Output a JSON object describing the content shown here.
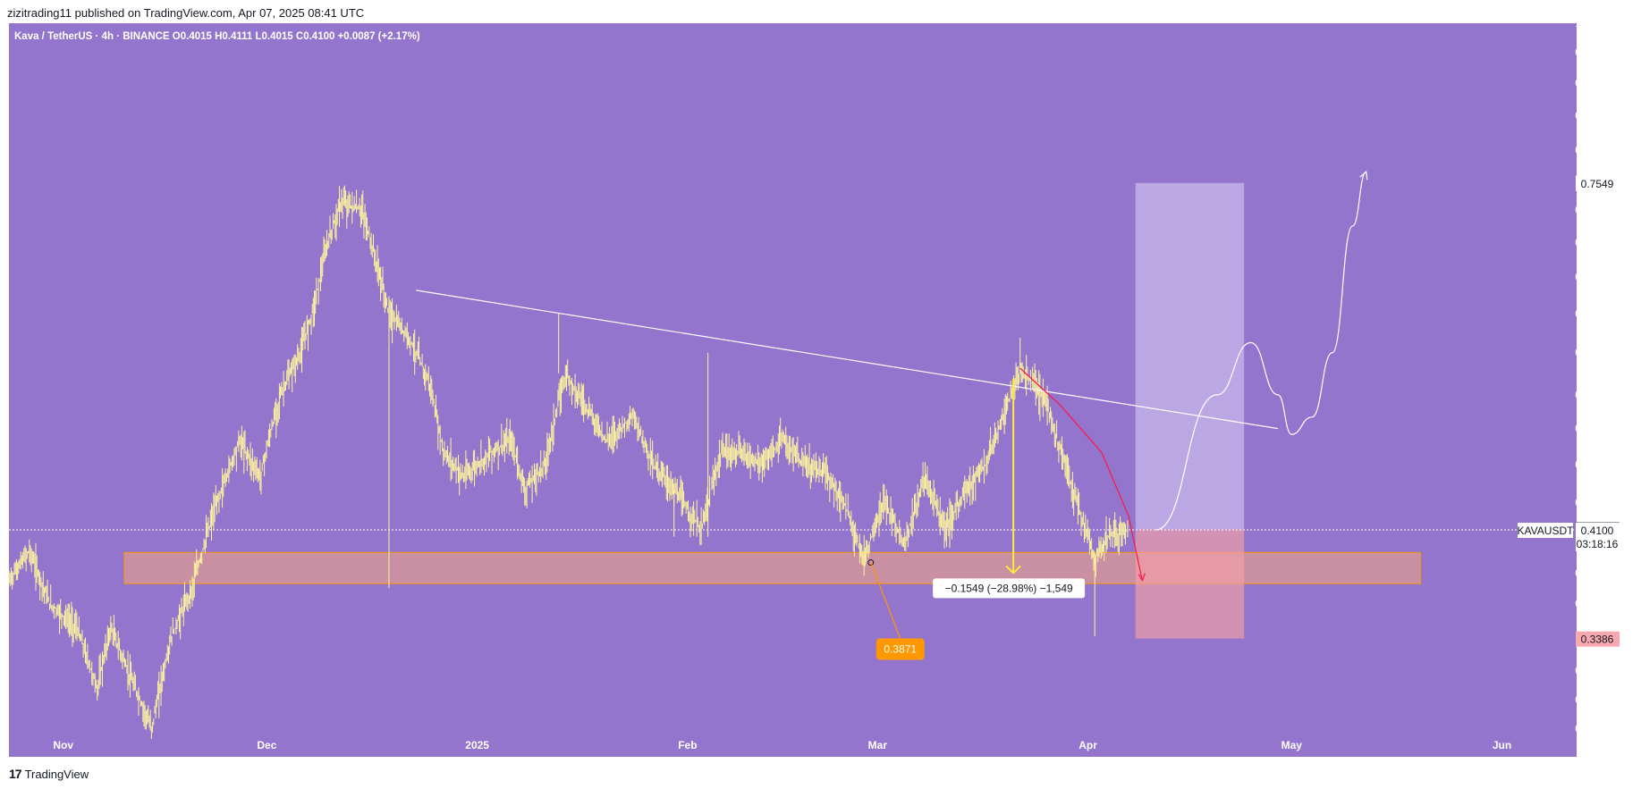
{
  "header": {
    "published_text": "zizitrading11 published on TradingView.com, Apr 07, 2025 08:41 UTC"
  },
  "symbol_line": "Kava / TetherUS · 4h · BINANCE  O0.4015  H0.4111  L0.4015  C0.4100  +0.0087 (+2.17%)",
  "footer": {
    "brand": "TradingView",
    "logo_glyph": "17"
  },
  "colors": {
    "background": "#9475cd",
    "candles": "#fff59d",
    "zone_fill": "#f4a582",
    "zone_border": "#ff9800",
    "trendline": "#ffffff",
    "projection": "#ff1744",
    "target_box": "#c9b8ec",
    "stop_box": "#f4a0a6"
  },
  "chart_data": {
    "type": "candlestick",
    "symbol": "KAVAUSDT",
    "timeframe": "4h",
    "exchange": "BINANCE",
    "y_scale": "log",
    "ylim": [
      0.275,
      1.0
    ],
    "y_ticks": [
      "1.0000",
      "0.9500",
      "0.9000",
      "0.8500",
      "0.8000",
      "0.7549",
      "0.7200",
      "0.6800",
      "0.6400",
      "0.6000",
      "0.5600",
      "0.5200",
      "0.4900",
      "0.4600",
      "0.4300",
      "0.4104",
      "0.4100",
      "0.3800",
      "0.3600",
      "0.3386",
      "0.3200",
      "0.3040",
      "0.2890"
    ],
    "axis_y_labels": [
      "1.0000",
      "0.9500",
      "0.9000",
      "0.8500",
      "0.8000",
      "0.7200",
      "0.6800",
      "0.6400",
      "0.6000",
      "0.5600",
      "0.5200",
      "0.4900",
      "0.4600",
      "0.4300",
      "0.3800",
      "0.3600",
      "0.3200",
      "0.3040",
      "0.2890"
    ],
    "x_ticks": [
      "Nov",
      "Dec",
      "2025",
      "Feb",
      "Mar",
      "Apr",
      "May",
      "Jun"
    ],
    "x_tick_dates": [
      "2024-11-01",
      "2024-12-01",
      "2025-01-01",
      "2025-02-01",
      "2025-03-01",
      "2025-04-01",
      "2025-05-01",
      "2025-06-01"
    ],
    "xlim": [
      "2024-10-24",
      "2025-06-12"
    ],
    "ohlc_last": {
      "open": 0.4015,
      "high": 0.4111,
      "low": 0.4015,
      "close": 0.41,
      "change": 0.0087,
      "change_pct": "+2.17%"
    },
    "price_path": [
      {
        "date": "2024-10-24",
        "price": 0.375
      },
      {
        "date": "2024-10-27",
        "price": 0.395
      },
      {
        "date": "2024-10-30",
        "price": 0.36
      },
      {
        "date": "2024-11-03",
        "price": 0.345
      },
      {
        "date": "2024-11-06",
        "price": 0.31
      },
      {
        "date": "2024-11-08",
        "price": 0.345
      },
      {
        "date": "2024-11-11",
        "price": 0.315
      },
      {
        "date": "2024-11-14",
        "price": 0.289
      },
      {
        "date": "2024-11-17",
        "price": 0.34
      },
      {
        "date": "2024-11-20",
        "price": 0.37
      },
      {
        "date": "2024-11-23",
        "price": 0.42
      },
      {
        "date": "2024-11-27",
        "price": 0.48
      },
      {
        "date": "2024-11-30",
        "price": 0.45
      },
      {
        "date": "2024-12-03",
        "price": 0.52
      },
      {
        "date": "2024-12-06",
        "price": 0.56
      },
      {
        "date": "2024-12-08",
        "price": 0.61
      },
      {
        "date": "2024-12-10",
        "price": 0.68
      },
      {
        "date": "2024-12-12",
        "price": 0.73
      },
      {
        "date": "2024-12-15",
        "price": 0.72
      },
      {
        "date": "2024-12-17",
        "price": 0.66
      },
      {
        "date": "2024-12-19",
        "price": 0.6
      },
      {
        "date": "2024-12-22",
        "price": 0.575
      },
      {
        "date": "2024-12-25",
        "price": 0.53
      },
      {
        "date": "2024-12-27",
        "price": 0.47
      },
      {
        "date": "2024-12-30",
        "price": 0.45
      },
      {
        "date": "2025-01-03",
        "price": 0.47
      },
      {
        "date": "2025-01-06",
        "price": 0.48
      },
      {
        "date": "2025-01-08",
        "price": 0.44
      },
      {
        "date": "2025-01-11",
        "price": 0.46
      },
      {
        "date": "2025-01-14",
        "price": 0.54
      },
      {
        "date": "2025-01-17",
        "price": 0.51
      },
      {
        "date": "2025-01-20",
        "price": 0.48
      },
      {
        "date": "2025-01-24",
        "price": 0.5
      },
      {
        "date": "2025-01-27",
        "price": 0.46
      },
      {
        "date": "2025-01-30",
        "price": 0.44
      },
      {
        "date": "2025-02-03",
        "price": 0.41
      },
      {
        "date": "2025-02-06",
        "price": 0.47
      },
      {
        "date": "2025-02-09",
        "price": 0.47
      },
      {
        "date": "2025-02-12",
        "price": 0.46
      },
      {
        "date": "2025-02-15",
        "price": 0.48
      },
      {
        "date": "2025-02-18",
        "price": 0.46
      },
      {
        "date": "2025-02-21",
        "price": 0.455
      },
      {
        "date": "2025-02-24",
        "price": 0.43
      },
      {
        "date": "2025-02-27",
        "price": 0.39
      },
      {
        "date": "2025-03-02",
        "price": 0.43
      },
      {
        "date": "2025-03-05",
        "price": 0.4
      },
      {
        "date": "2025-03-08",
        "price": 0.45
      },
      {
        "date": "2025-03-11",
        "price": 0.41
      },
      {
        "date": "2025-03-14",
        "price": 0.44
      },
      {
        "date": "2025-03-17",
        "price": 0.46
      },
      {
        "date": "2025-03-20",
        "price": 0.51
      },
      {
        "date": "2025-03-22",
        "price": 0.54
      },
      {
        "date": "2025-03-24",
        "price": 0.53
      },
      {
        "date": "2025-03-26",
        "price": 0.51
      },
      {
        "date": "2025-03-28",
        "price": 0.47
      },
      {
        "date": "2025-03-31",
        "price": 0.42
      },
      {
        "date": "2025-04-02",
        "price": 0.39
      },
      {
        "date": "2025-04-04",
        "price": 0.405
      },
      {
        "date": "2025-04-07",
        "price": 0.41
      }
    ],
    "wicks": [
      {
        "date": "2024-12-19",
        "low": 0.37
      },
      {
        "date": "2025-01-13",
        "high": 0.6
      },
      {
        "date": "2025-01-30",
        "low": 0.405
      },
      {
        "date": "2025-02-04",
        "high": 0.56
      },
      {
        "date": "2025-02-04",
        "low": 0.405
      },
      {
        "date": "2025-03-22",
        "high": 0.575
      },
      {
        "date": "2025-04-02",
        "low": 0.34
      }
    ],
    "support_zone": {
      "low": 0.373,
      "high": 0.394,
      "from": "2024-11-10",
      "to": "2025-05-20"
    },
    "trendline": {
      "from": {
        "date": "2024-12-23",
        "price": 0.625
      },
      "to": {
        "date": "2025-04-29",
        "price": 0.49
      }
    },
    "measure": {
      "label": "−0.1549 (−28.98%) −1,549",
      "from_price": 0.535,
      "to_price": 0.38,
      "date": "2025-03-21"
    },
    "annotation_label": {
      "text": "0.3871",
      "price": 0.3871,
      "date": "2025-02-28"
    },
    "position_box": {
      "from": "2025-04-08",
      "to": "2025-04-24",
      "entry": 0.4104,
      "target": 0.7549,
      "stop": 0.3386
    },
    "projection_path": [
      {
        "date": "2025-04-11",
        "price": 0.41
      },
      {
        "date": "2025-04-20",
        "price": 0.52
      },
      {
        "date": "2025-04-25",
        "price": 0.57
      },
      {
        "date": "2025-04-29",
        "price": 0.52
      },
      {
        "date": "2025-05-01",
        "price": 0.485
      },
      {
        "date": "2025-05-04",
        "price": 0.5
      },
      {
        "date": "2025-05-07",
        "price": 0.56
      },
      {
        "date": "2025-05-10",
        "price": 0.7
      },
      {
        "date": "2025-05-12",
        "price": 0.77
      }
    ],
    "red_projection": [
      {
        "date": "2025-03-22",
        "price": 0.545
      },
      {
        "date": "2025-03-28",
        "price": 0.51
      },
      {
        "date": "2025-04-03",
        "price": 0.47
      },
      {
        "date": "2025-04-07",
        "price": 0.42
      },
      {
        "date": "2025-04-09",
        "price": 0.375
      }
    ],
    "price_flags": [
      {
        "text": "0.7549",
        "price": 0.7549,
        "style": "white"
      },
      {
        "text": "0.4104",
        "price": 0.4104,
        "style": "dark"
      },
      {
        "text": "0.4100",
        "price": 0.41,
        "style": "white",
        "sub": "03:18:16",
        "symbol": "KAVAUSDT"
      },
      {
        "text": "0.3386",
        "price": 0.3386,
        "style": "red"
      }
    ]
  }
}
